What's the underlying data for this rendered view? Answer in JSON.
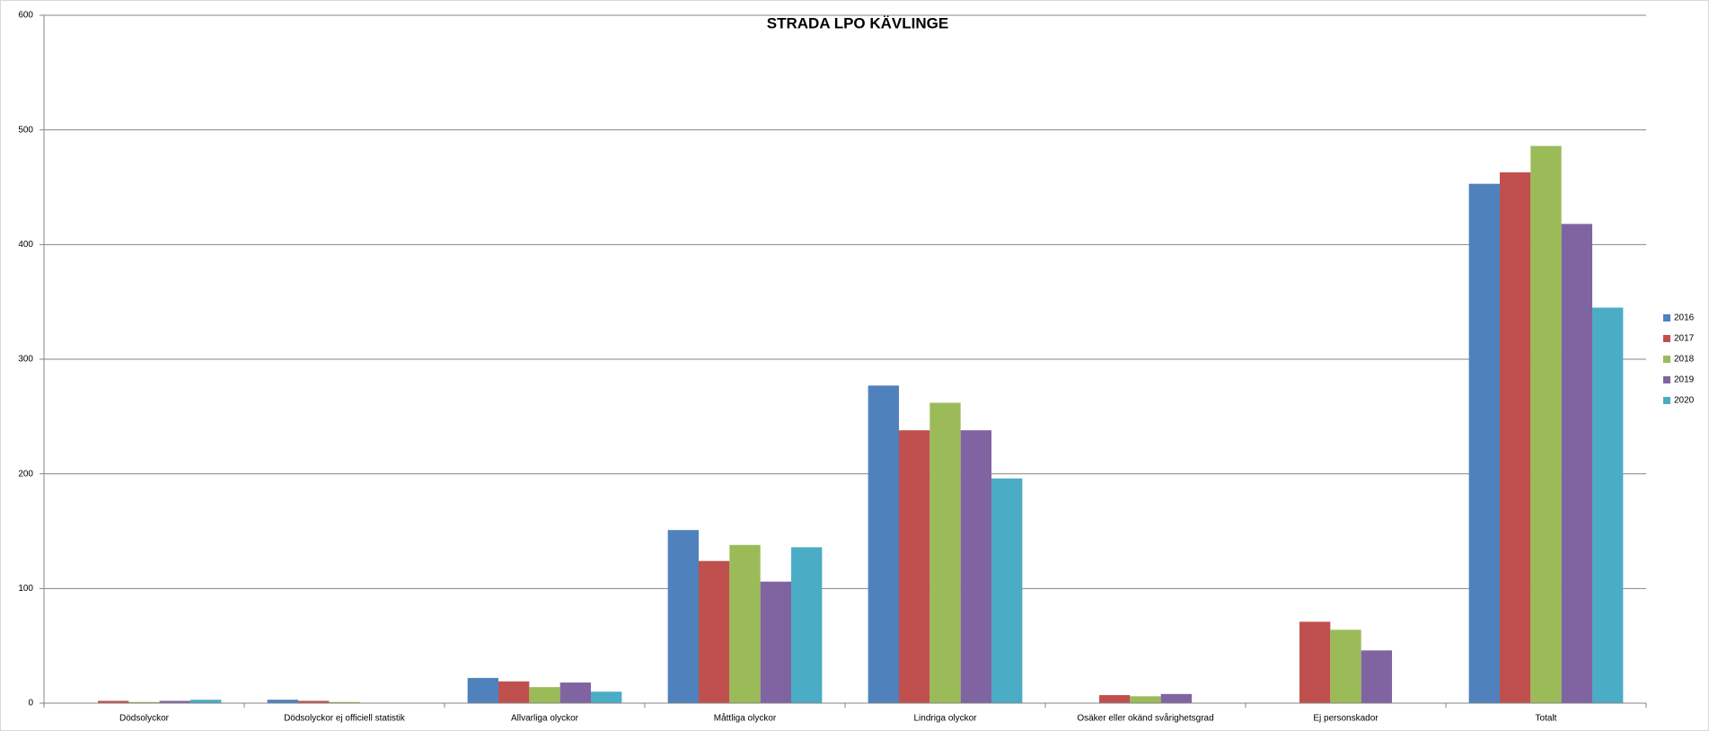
{
  "chart_data": {
    "type": "bar",
    "title": "STRADA LPO KÄVLINGE",
    "categories": [
      "Dödsolyckor",
      "Dödsolyckor ej officiell statistik",
      "Allvarliga olyckor",
      "Måttliga olyckor",
      "Lindriga olyckor",
      "Osäker eller okänd svårighetsgrad",
      "Ej personskador",
      "Totalt"
    ],
    "series": [
      {
        "name": "2016",
        "color": "#4f81bd",
        "values": [
          0,
          3,
          22,
          151,
          277,
          0,
          0,
          453
        ]
      },
      {
        "name": "2017",
        "color": "#c0504d",
        "values": [
          2,
          2,
          19,
          124,
          238,
          7,
          71,
          463
        ]
      },
      {
        "name": "2018",
        "color": "#9bbb59",
        "values": [
          1,
          1,
          14,
          138,
          262,
          6,
          64,
          486
        ]
      },
      {
        "name": "2019",
        "color": "#8064a2",
        "values": [
          2,
          0,
          18,
          106,
          238,
          8,
          46,
          418
        ]
      },
      {
        "name": "2020",
        "color": "#4bacc6",
        "values": [
          3,
          0,
          10,
          136,
          196,
          0,
          0,
          345
        ]
      }
    ],
    "ylim": [
      0,
      600
    ],
    "yticks": [
      0,
      100,
      200,
      300,
      400,
      500,
      600
    ],
    "grid": true,
    "legend": "right"
  }
}
